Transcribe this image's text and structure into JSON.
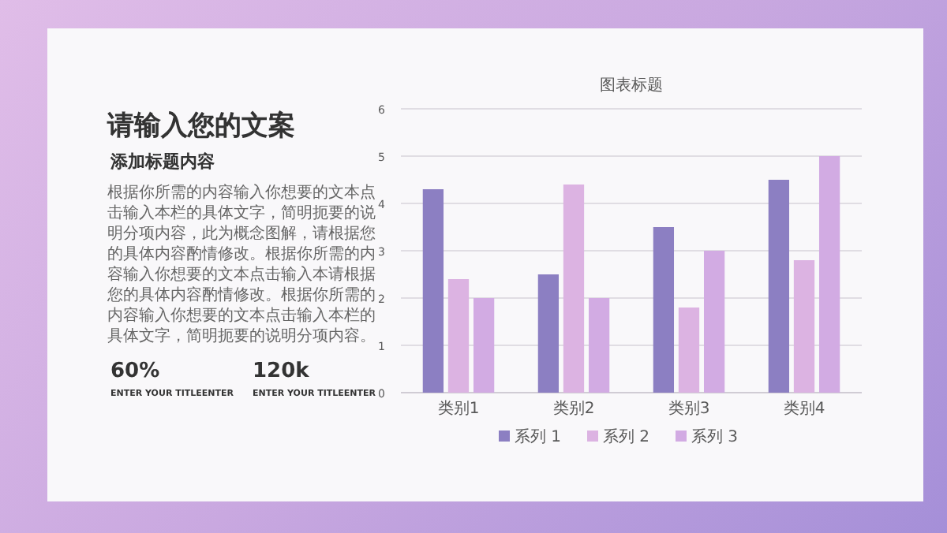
{
  "chart_data": {
    "type": "bar",
    "title": "图表标题",
    "categories": [
      "类别1",
      "类别2",
      "类别3",
      "类别4"
    ],
    "series": [
      {
        "name": "系列 1",
        "color": "#8c7fc2",
        "values": [
          4.3,
          2.5,
          3.5,
          4.5
        ]
      },
      {
        "name": "系列 2",
        "color": "#dcb3e2",
        "values": [
          2.4,
          4.4,
          1.8,
          2.8
        ]
      },
      {
        "name": "系列 3",
        "color": "#d2abe3",
        "values": [
          2,
          2,
          3,
          5
        ]
      }
    ],
    "ylim": [
      0,
      6
    ],
    "yticks": [
      0,
      1,
      2,
      3,
      4,
      5,
      6
    ],
    "grid": "y",
    "legend": "bottom",
    "annotations": [
      "请输入您的文案",
      "添加标题内容",
      "根据你所需的内容输入你想要的文本点击输入本栏的具体文字，简明扼要的说明分项内容，此为概念图解，请根据您的具体内容酌情修改。根据你所需的内容输入你想要的文本点击输入本请根据您的具体内容酌情修改。根据你所需的内容输入你想要的文本点击输入本栏的具体文字，简明扼要的说明分项内容。",
      "60%",
      "ENTER YOUR TITLEENTER",
      "120k",
      "ENTER YOUR TITLEENTER"
    ]
  }
}
